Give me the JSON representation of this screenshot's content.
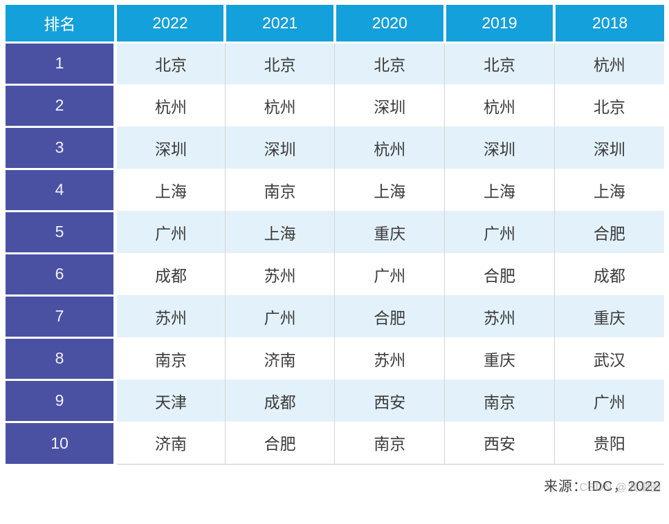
{
  "chart_data": {
    "type": "table",
    "columns": [
      "排名",
      "2022",
      "2021",
      "2020",
      "2019",
      "2018"
    ],
    "rows": [
      [
        "1",
        "北京",
        "北京",
        "北京",
        "北京",
        "杭州"
      ],
      [
        "2",
        "杭州",
        "杭州",
        "深圳",
        "杭州",
        "北京"
      ],
      [
        "3",
        "深圳",
        "深圳",
        "杭州",
        "深圳",
        "深圳"
      ],
      [
        "4",
        "上海",
        "南京",
        "上海",
        "上海",
        "上海"
      ],
      [
        "5",
        "广州",
        "上海",
        "重庆",
        "广州",
        "合肥"
      ],
      [
        "6",
        "成都",
        "苏州",
        "广州",
        "合肥",
        "成都"
      ],
      [
        "7",
        "苏州",
        "广州",
        "合肥",
        "苏州",
        "重庆"
      ],
      [
        "8",
        "南京",
        "济南",
        "苏州",
        "重庆",
        "武汉"
      ],
      [
        "9",
        "天津",
        "成都",
        "西安",
        "南京",
        "广州"
      ],
      [
        "10",
        "济南",
        "合肥",
        "南京",
        "西安",
        "贵阳"
      ]
    ],
    "source_note": "来源：IDC，2022",
    "layout": {
      "stripe_pattern": "odd-rows-light-blue",
      "grid": "vertical-separators-only"
    }
  },
  "footer": {
    "source": "来源：IDC，2022",
    "watermark": "CSDN @浪潮圈"
  },
  "colors": {
    "header_bg": "#14A0DA",
    "rank_bg": "#4B51A2",
    "row_alt_bg": "#E3F1FA",
    "row_bg": "#FFFFFF",
    "cell_text": "#3B3B3B",
    "header_text": "#FFFFFF"
  }
}
